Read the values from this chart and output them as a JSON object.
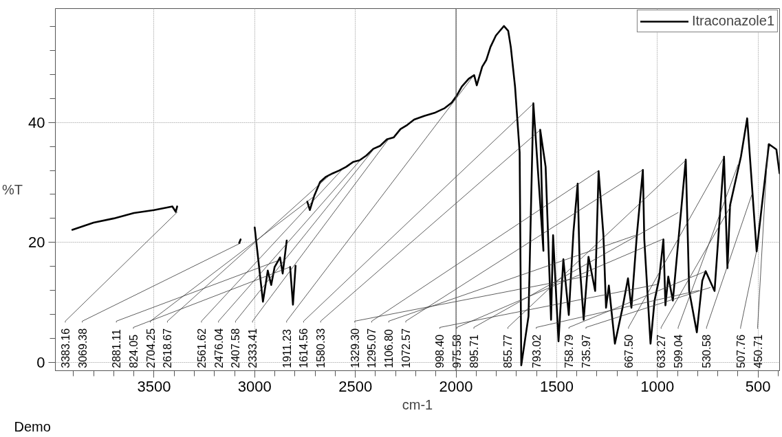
{
  "chart_data": {
    "type": "line",
    "xlabel": "cm-1",
    "ylabel": "%T",
    "xlim": [
      3990,
      393
    ],
    "ylim": [
      -1.4,
      59
    ],
    "xticks": [
      {
        "value": 3900,
        "label": null
      },
      {
        "value": 3800,
        "label": null
      },
      {
        "value": 3700,
        "label": null
      },
      {
        "value": 3600,
        "label": null
      },
      3500,
      {
        "value": 3400,
        "label": null
      },
      {
        "value": 3300,
        "label": null
      },
      {
        "value": 3200,
        "label": null
      },
      {
        "value": 3100,
        "label": null
      },
      3000,
      {
        "value": 2900,
        "label": null
      },
      {
        "value": 2800,
        "label": null
      },
      {
        "value": 2700,
        "label": null
      },
      {
        "value": 2600,
        "label": null
      },
      2500,
      {
        "value": 2400,
        "label": null
      },
      {
        "value": 2300,
        "label": null
      },
      {
        "value": 2200,
        "label": null
      },
      {
        "value": 2100,
        "label": null
      },
      2000,
      {
        "value": 1900,
        "label": null
      },
      {
        "value": 1800,
        "label": null
      },
      {
        "value": 1700,
        "label": null
      },
      {
        "value": 1600,
        "label": null
      },
      1500,
      {
        "value": 1400,
        "label": null
      },
      {
        "value": 1300,
        "label": null
      },
      {
        "value": 1200,
        "label": null
      },
      {
        "value": 1100,
        "label": null
      },
      1000,
      {
        "value": 900,
        "label": null
      },
      {
        "value": 800,
        "label": null
      },
      {
        "value": 700,
        "label": null
      },
      {
        "value": 600,
        "label": null
      },
      500,
      {
        "value": 400,
        "label": null
      }
    ],
    "yticks": [
      0,
      {
        "value": 4,
        "label": null
      },
      {
        "value": 8,
        "label": null
      },
      {
        "value": 12,
        "label": null
      },
      {
        "value": 16,
        "label": null
      },
      20,
      {
        "value": 24,
        "label": null
      },
      {
        "value": 28,
        "label": null
      },
      {
        "value": 32,
        "label": null
      },
      {
        "value": 36,
        "label": null
      },
      40,
      {
        "value": 44,
        "label": null
      },
      {
        "value": 48,
        "label": null
      },
      {
        "value": 52,
        "label": null
      },
      {
        "value": 56,
        "label": null
      }
    ],
    "grid": true,
    "legend": "top right",
    "line_style": "solid",
    "marker": "none",
    "ref_lines": [
      {
        "axis": "x",
        "value": 2000,
        "color": "#555555"
      }
    ],
    "series": [
      {
        "name": "Itraconazole1",
        "color": "#000000",
        "x": [
          3906,
          3800,
          3700,
          3600,
          3500,
          3409,
          3392,
          3385,
          3380,
          3077,
          3070,
          3060,
          3000,
          2959,
          2935,
          2918,
          2901,
          2874,
          2861,
          2841,
          2835,
          2824,
          2810,
          2797,
          2790,
          2739,
          2726,
          2705,
          2675,
          2648,
          2614,
          2580,
          2546,
          2512,
          2479,
          2445,
          2411,
          2377,
          2343,
          2310,
          2276,
          2242,
          2208,
          2158,
          2107,
          2056,
          2022,
          1998,
          1971,
          1937,
          1910,
          1897,
          1870,
          1850,
          1829,
          1802,
          1782,
          1762,
          1741,
          1728,
          1707,
          1684,
          1676,
          1640,
          1616,
          1566,
          1582,
          1555,
          1528,
          1518,
          1491,
          1467,
          1440,
          1417,
          1396,
          1386,
          1366,
          1342,
          1309,
          1292,
          1268,
          1255,
          1241,
          1211,
          1173,
          1146,
          1129,
          1102,
          1072,
          1065,
          1034,
          1014,
          991,
          970,
          960,
          946,
          923,
          859,
          842,
          804,
          777,
          760,
          716,
          669,
          652,
          639,
          585,
          554,
          507,
          446,
          409,
          393
        ],
        "values": [
          22.1,
          23.3,
          24.0,
          24.9,
          25.4,
          26.0,
          25.1,
          26.0,
          null,
          19.9,
          20.5,
          null,
          22.5,
          10.1,
          15.3,
          12.9,
          15.9,
          17.5,
          14.8,
          20.3,
          null,
          15.9,
          9.6,
          16.1,
          null,
          26.8,
          25.4,
          27.7,
          30.1,
          30.9,
          31.5,
          32.0,
          32.6,
          33.4,
          33.7,
          34.5,
          35.6,
          36.1,
          37.2,
          37.5,
          38.9,
          39.6,
          40.5,
          41.1,
          41.6,
          42.4,
          43.3,
          44.4,
          46.0,
          47.3,
          47.9,
          46.2,
          49.3,
          50.4,
          52.6,
          54.5,
          55.3,
          56.1,
          55.3,
          52.6,
          46.0,
          35.0,
          -0.5,
          7.7,
          43.2,
          18.6,
          38.8,
          32.6,
          7.1,
          21.2,
          3.5,
          17.2,
          7.9,
          21.7,
          29.8,
          16.4,
          7.1,
          17.6,
          11.9,
          31.9,
          21.2,
          9.1,
          12.8,
          3.1,
          9.1,
          14.0,
          9.1,
          21.2,
          32.1,
          20.5,
          3.1,
          10.3,
          14.0,
          20.5,
          9.5,
          14.3,
          10.3,
          33.8,
          11.9,
          5.0,
          13.6,
          15.2,
          11.9,
          34.3,
          15.7,
          26.2,
          34.3,
          40.7,
          18.5,
          36.4,
          35.5,
          31.5
        ]
      }
    ],
    "annotations": [
      {
        "text": "3383.16",
        "x": 3383.16,
        "y": 25.1
      },
      {
        "text": "3069.38",
        "x": 3069.38,
        "y": 19.9
      },
      {
        "text": "2881.11",
        "x": 2881.11,
        "y": 17.0
      },
      {
        "text": "824.05",
        "x": 2824.05,
        "y": 15.9
      },
      {
        "text": "2704.25",
        "x": 2704.25,
        "y": 27.7
      },
      {
        "text": "2618.67",
        "x": 2618.67,
        "y": 31.5
      },
      {
        "text": "2561.62",
        "x": 2561.62,
        "y": 32.3
      },
      {
        "text": "2476.04",
        "x": 2476.04,
        "y": 33.7
      },
      {
        "text": "2407.58",
        "x": 2407.58,
        "y": 35.6
      },
      {
        "text": "2333.41",
        "x": 2333.41,
        "y": 37.3
      },
      {
        "text": "1911.23",
        "x": 1911.23,
        "y": 47.9
      },
      {
        "text": "1614.56",
        "x": 1614.56,
        "y": 43.2
      },
      {
        "text": "1580.33",
        "x": 1580.33,
        "y": 38.8
      },
      {
        "text": "1329.30",
        "x": 1329.3,
        "y": 14.5
      },
      {
        "text": "1295.07",
        "x": 1295.07,
        "y": 31.9
      },
      {
        "text": "1106.80",
        "x": 1106.8,
        "y": 21.2
      },
      {
        "text": "1072.57",
        "x": 1072.57,
        "y": 32.1
      },
      {
        "text": "998.40",
        "x": 998.4,
        "y": 13.0
      },
      {
        "text": "975.58",
        "x": 975.58,
        "y": 20.5
      },
      {
        "text": "895.71",
        "x": 895.71,
        "y": 25.0
      },
      {
        "text": "855.77",
        "x": 855.77,
        "y": 33.8
      },
      {
        "text": "793.02",
        "x": 793.02,
        "y": 12.0
      },
      {
        "text": "758.79",
        "x": 758.79,
        "y": 15.2
      },
      {
        "text": "735.97",
        "x": 735.97,
        "y": 12.5
      },
      {
        "text": "667.50",
        "x": 667.5,
        "y": 34.3
      },
      {
        "text": "633.27",
        "x": 633.27,
        "y": 26.2
      },
      {
        "text": "599.04",
        "x": 599.04,
        "y": 33.0
      },
      {
        "text": "530.58",
        "x": 530.58,
        "y": 28.0
      },
      {
        "text": "507.76",
        "x": 507.76,
        "y": 18.5
      },
      {
        "text": "450.71",
        "x": 450.71,
        "y": 36.4
      },
      "Demo"
    ]
  }
}
